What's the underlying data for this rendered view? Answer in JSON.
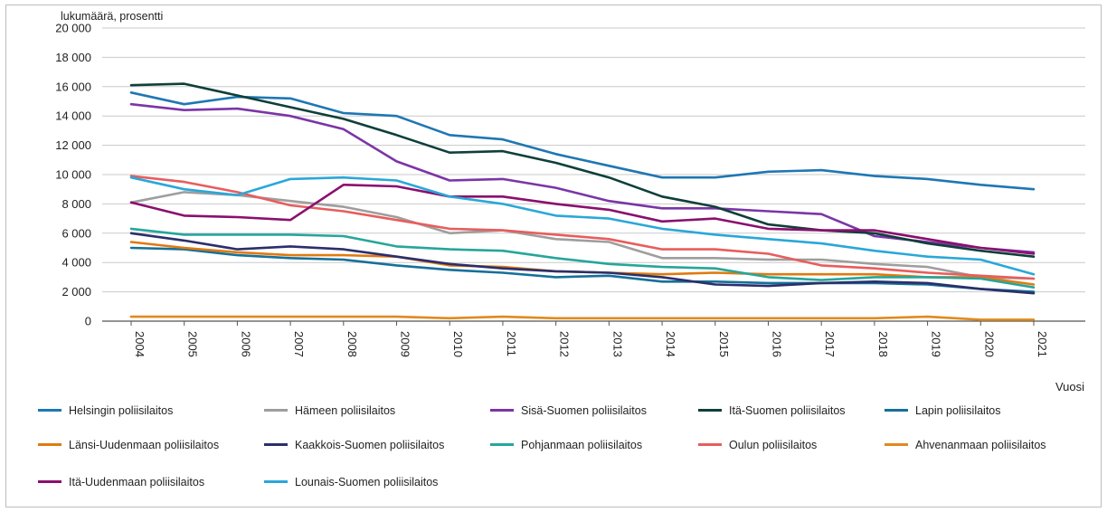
{
  "chart_data": {
    "type": "line",
    "ylabel": "lukumäärä, prosentti",
    "xlabel": "Vuosi",
    "ylim": [
      0,
      20000
    ],
    "yticks": [
      0,
      2000,
      4000,
      6000,
      8000,
      10000,
      12000,
      14000,
      16000,
      18000,
      20000
    ],
    "ytick_labels": [
      "0",
      "2 000",
      "4 000",
      "6 000",
      "8 000",
      "10 000",
      "12 000",
      "14 000",
      "16 000",
      "18 000",
      "20 000"
    ],
    "grid": true,
    "legend_position": "bottom",
    "categories": [
      "2004",
      "2005",
      "2006",
      "2007",
      "2008",
      "2009",
      "2010",
      "2011",
      "2012",
      "2013",
      "2014",
      "2015",
      "2016",
      "2017",
      "2018",
      "2019",
      "2020",
      "2021"
    ],
    "series": [
      {
        "name": "Helsingin poliisilaitos",
        "color": "#1f77b4",
        "values": [
          15600,
          14800,
          15300,
          15200,
          14200,
          14000,
          12700,
          12400,
          11400,
          10600,
          9800,
          9800,
          10200,
          10300,
          9900,
          9700,
          9300,
          9000
        ]
      },
      {
        "name": "Hämeen poliisilaitos",
        "color": "#9e9e9e",
        "values": [
          8100,
          8800,
          8600,
          8200,
          7800,
          7100,
          6000,
          6200,
          5600,
          5400,
          4300,
          4300,
          4200,
          4200,
          3900,
          3700,
          3000,
          2900
        ]
      },
      {
        "name": "Sisä-Suomen poliisilaitos",
        "color": "#7b35a6",
        "values": [
          14800,
          14400,
          14500,
          14000,
          13100,
          10900,
          9600,
          9700,
          9100,
          8200,
          7700,
          7700,
          7500,
          7300,
          5800,
          5400,
          5000,
          4700
        ]
      },
      {
        "name": "Itä-Suomen poliisilaitos",
        "color": "#0f3f3a",
        "values": [
          16100,
          16200,
          15400,
          14600,
          13800,
          12700,
          11500,
          11600,
          10800,
          9800,
          8500,
          7800,
          6600,
          6200,
          6000,
          5300,
          4800,
          4400
        ]
      },
      {
        "name": "Lapin poliisilaitos",
        "color": "#15709a",
        "values": [
          5000,
          4900,
          4500,
          4300,
          4200,
          3800,
          3500,
          3300,
          3000,
          3100,
          2700,
          2700,
          2600,
          2600,
          2600,
          2500,
          2200,
          2000
        ]
      },
      {
        "name": "Länsi-Uudenmaan poliisilaitos",
        "color": "#e07a10",
        "values": [
          5400,
          5000,
          4700,
          4500,
          4500,
          4400,
          3800,
          3700,
          3400,
          3300,
          3200,
          3300,
          3200,
          3200,
          3200,
          3000,
          3000,
          2500
        ]
      },
      {
        "name": "Kaakkois-Suomen poliisilaitos",
        "color": "#2b2f6b",
        "values": [
          6000,
          5500,
          4900,
          5100,
          4900,
          4400,
          3900,
          3600,
          3400,
          3300,
          3000,
          2500,
          2400,
          2600,
          2700,
          2600,
          2200,
          1900
        ]
      },
      {
        "name": "Pohjanmaan poliisilaitos",
        "color": "#26a69a",
        "values": [
          6300,
          5900,
          5900,
          5900,
          5800,
          5100,
          4900,
          4800,
          4300,
          3900,
          3700,
          3600,
          3000,
          2800,
          3000,
          3000,
          2900,
          2300
        ]
      },
      {
        "name": "Oulun poliisilaitos",
        "color": "#e85d5d",
        "values": [
          9900,
          9500,
          8800,
          7900,
          7500,
          6900,
          6300,
          6200,
          5900,
          5600,
          4900,
          4900,
          4600,
          3800,
          3600,
          3300,
          3100,
          2900
        ]
      },
      {
        "name": "Ahvenanmaan poliisilaitos",
        "color": "#e08a1e",
        "values": [
          300,
          300,
          300,
          300,
          300,
          300,
          200,
          300,
          200,
          200,
          200,
          200,
          200,
          200,
          200,
          300,
          100,
          100
        ]
      },
      {
        "name": "Itä-Uudenmaan poliisilaitos",
        "color": "#8a0f6e",
        "values": [
          8100,
          7200,
          7100,
          6900,
          9300,
          9200,
          8500,
          8500,
          8000,
          7600,
          6800,
          7000,
          6300,
          6200,
          6200,
          5600,
          5000,
          4600
        ]
      },
      {
        "name": "Lounais-Suomen poliisilaitos",
        "color": "#2aa7d9",
        "values": [
          9800,
          9000,
          8600,
          9700,
          9800,
          9600,
          8500,
          8000,
          7200,
          7000,
          6300,
          5900,
          5600,
          5300,
          4800,
          4400,
          4200,
          3200
        ]
      }
    ]
  }
}
